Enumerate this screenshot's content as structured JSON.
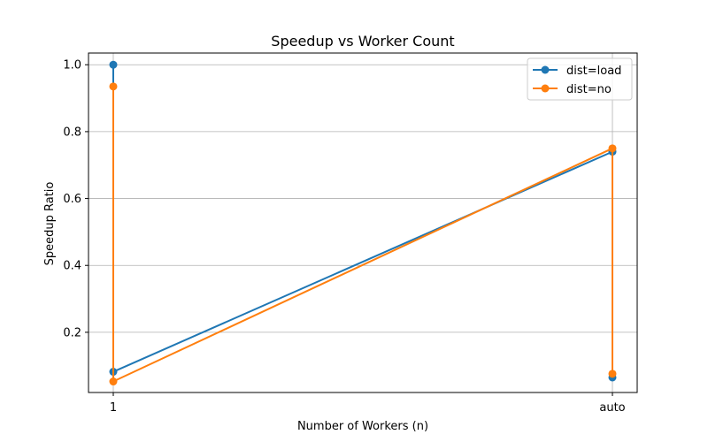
{
  "chart_data": {
    "type": "line",
    "title": "Speedup vs Worker Count",
    "xlabel": "Number of Workers (n)",
    "ylabel": "Speedup Ratio",
    "categories": [
      "1",
      "auto"
    ],
    "ylim": [
      0.02,
      1.035
    ],
    "yticks": [
      0.2,
      0.4,
      0.6,
      0.8,
      1.0
    ],
    "ytick_labels": [
      "0.2",
      "0.4",
      "0.6",
      "0.8",
      "1.0"
    ],
    "grid": true,
    "legend_position": "top-right",
    "series": [
      {
        "name": "dist=load",
        "color": "#1f77b4",
        "points": [
          {
            "x": "1",
            "y": 1.0
          },
          {
            "x": "1",
            "y": 0.082
          },
          {
            "x": "auto",
            "y": 0.74
          },
          {
            "x": "auto",
            "y": 0.065
          }
        ]
      },
      {
        "name": "dist=no",
        "color": "#ff7f0e",
        "points": [
          {
            "x": "1",
            "y": 0.935
          },
          {
            "x": "1",
            "y": 0.053
          },
          {
            "x": "auto",
            "y": 0.75
          },
          {
            "x": "auto",
            "y": 0.076
          }
        ]
      }
    ]
  }
}
